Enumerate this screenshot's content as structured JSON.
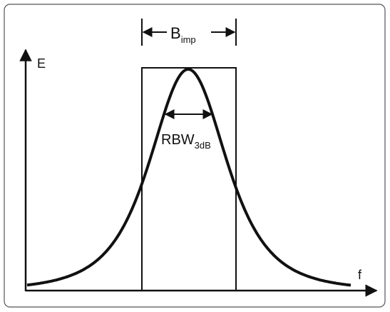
{
  "axes": {
    "y_label": "E",
    "x_label": "f"
  },
  "labels": {
    "bimp": {
      "main": "B",
      "sub": "imp"
    },
    "rbw": {
      "main": "RBW",
      "sub": "3dB"
    }
  }
}
